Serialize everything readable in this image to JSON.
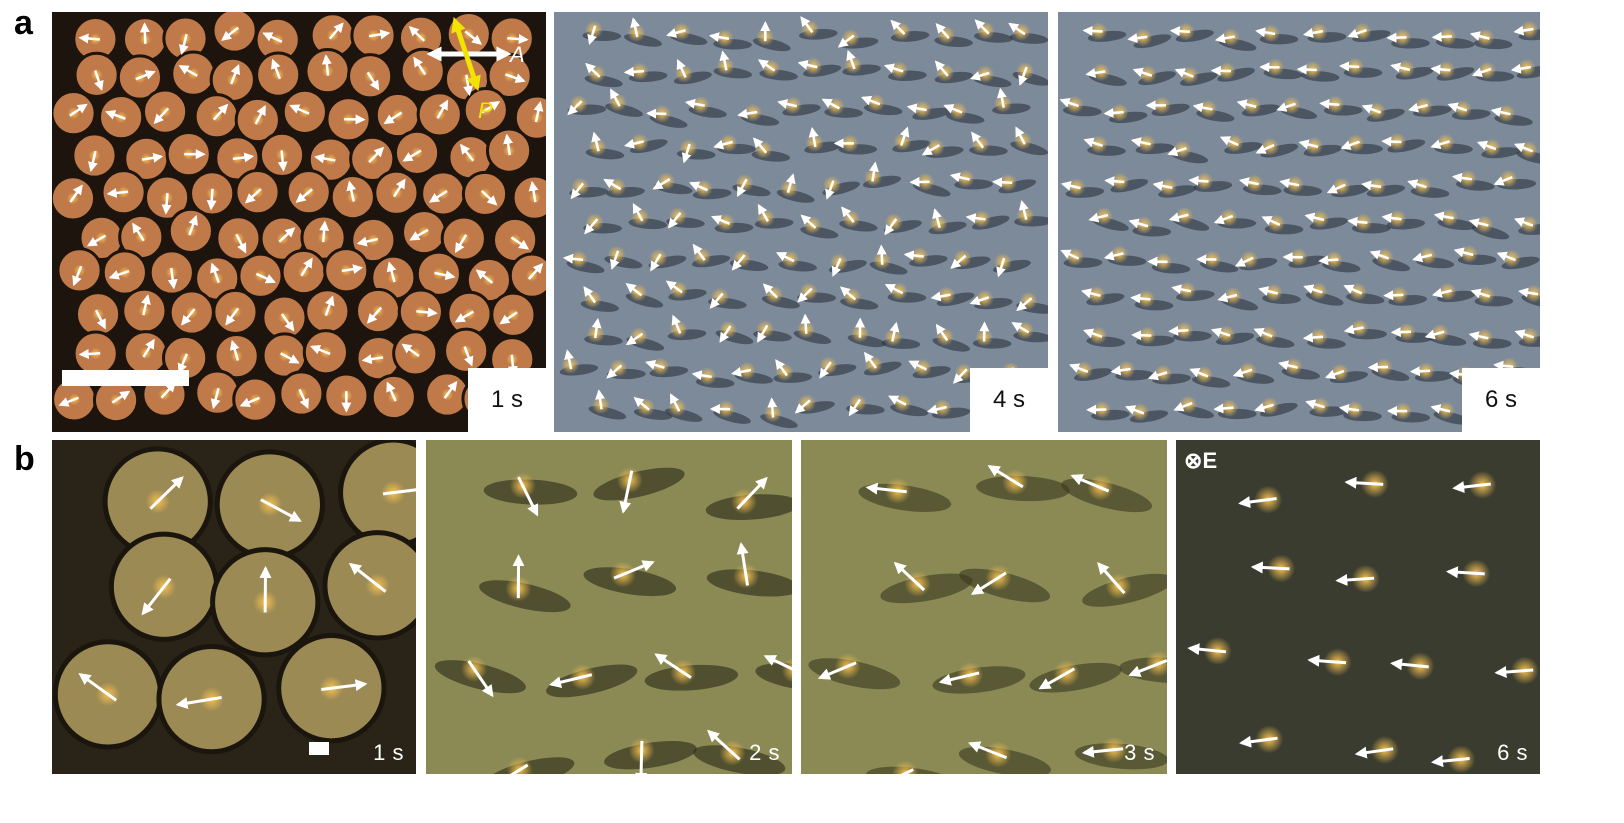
{
  "figure": {
    "row_a_label": "a",
    "row_b_label": "b",
    "row_a": [
      {
        "time": "1 s",
        "theme": "orange"
      },
      {
        "time": "4 s",
        "theme": "grey"
      },
      {
        "time": "6 s",
        "theme": "grey"
      }
    ],
    "row_b": [
      {
        "time": "1 s",
        "theme": "olive"
      },
      {
        "time": "2 s",
        "theme": "olive"
      },
      {
        "time": "3 s",
        "theme": "olive"
      },
      {
        "time": "6 s",
        "theme": "dark"
      }
    ],
    "polarizer_label": "P",
    "analyzer_label": "A",
    "field_label": "E",
    "field_symbol": "⊗",
    "colors": {
      "orange_cell": "#c07a4a",
      "orange_wall": "#1e140e",
      "grey_bg": "#7d8a99",
      "olive_bg": "#8b8a55",
      "dark_bg": "#3a3c30",
      "core": "#f4c050",
      "arrow": "#ffffff",
      "polarizer": "#f2e300"
    }
  }
}
